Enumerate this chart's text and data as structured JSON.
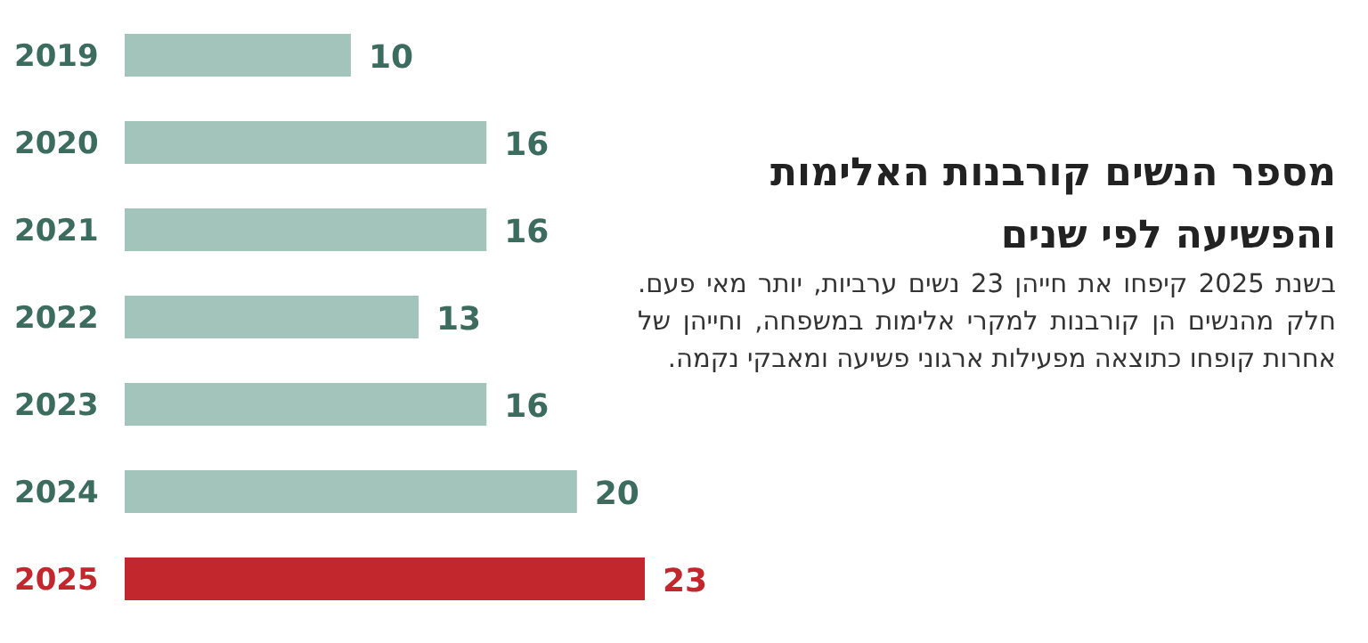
{
  "chart_data": {
    "type": "bar",
    "orientation": "horizontal",
    "title": "מספר הנשים קורבנות האלימות והפשיעה לפי שנים",
    "subtitle": "בשנת 2025 קיפחו את חייהן 23 נשים ערביות, יותר מאי פעם. חלק מהנשים הן קורבנות למקרי אלימות במשפחה, וחייהן של אחרות קופחו כתוצאה מפעילות ארגוני פשיעה ומאבקי נקמה.",
    "categories": [
      "2019",
      "2020",
      "2021",
      "2022",
      "2023",
      "2024",
      "2025"
    ],
    "values": [
      10,
      16,
      16,
      13,
      16,
      20,
      23
    ],
    "colors": [
      "#a3c4bb",
      "#a3c4bb",
      "#a3c4bb",
      "#a3c4bb",
      "#a3c4bb",
      "#a3c4bb",
      "#c1272d"
    ],
    "data_labels": true
  }
}
